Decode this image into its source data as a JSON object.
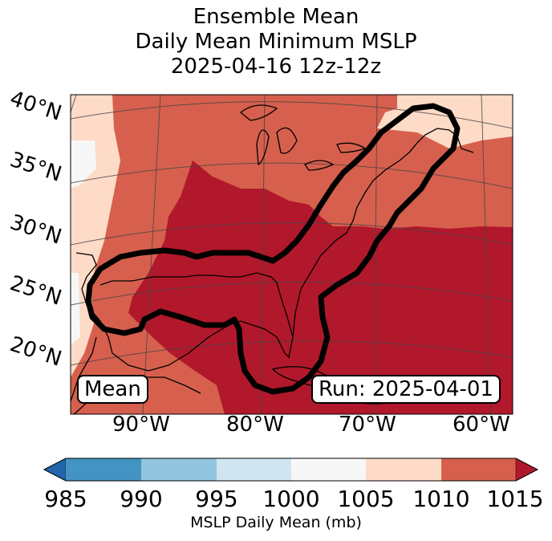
{
  "title": {
    "line1": "Ensemble Mean",
    "line2": "Daily Mean Minimum MSLP",
    "line3": "2025-04-16 12z-12z"
  },
  "map": {
    "lat_labels": [
      "40°N",
      "35°N",
      "30°N",
      "25°N",
      "20°N"
    ],
    "lon_labels": [
      "90°W",
      "80°W",
      "70°W",
      "60°W"
    ],
    "mean_box": "Mean",
    "run_box": "Run: 2025-04-01"
  },
  "colorbar": {
    "ticks": [
      "985",
      "990",
      "995",
      "1000",
      "1005",
      "1010",
      "1015"
    ],
    "label": "MSLP Daily Mean (mb)",
    "colors": {
      "below_985": "#2166ac",
      "985_990": "#4393c3",
      "990_995": "#92c5de",
      "995_1000": "#d1e5f0",
      "1000_1005": "#f7f7f7",
      "1005_1010": "#fddbc7",
      "1010_1015": "#d6604d",
      "above_1015": "#b2182b"
    }
  }
}
